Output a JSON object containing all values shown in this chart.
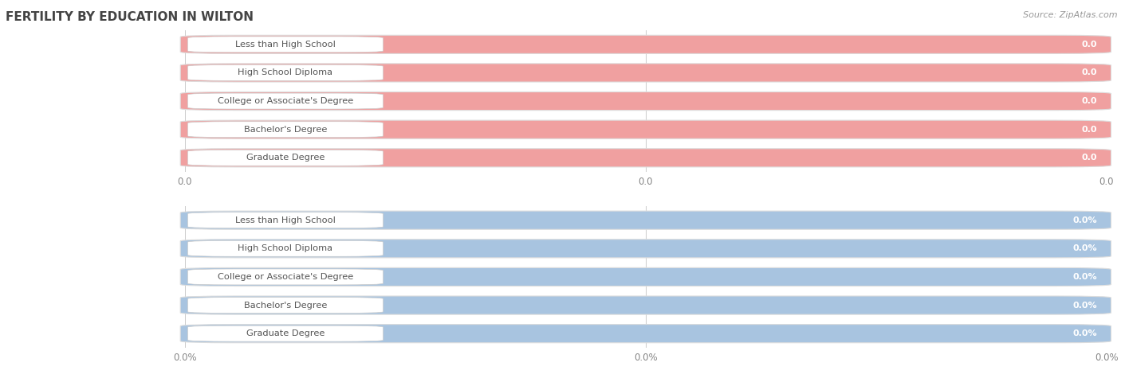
{
  "title": "FERTILITY BY EDUCATION IN WILTON",
  "source": "Source: ZipAtlas.com",
  "categories": [
    "Less than High School",
    "High School Diploma",
    "College or Associate's Degree",
    "Bachelor's Degree",
    "Graduate Degree"
  ],
  "top_values": [
    0.0,
    0.0,
    0.0,
    0.0,
    0.0
  ],
  "bottom_values": [
    0.0,
    0.0,
    0.0,
    0.0,
    0.0
  ],
  "top_bar_color": "#f0a0a0",
  "top_value_color": "#ffffff",
  "bottom_bar_color": "#a8c4e0",
  "bottom_value_color": "#ffffff",
  "white_label_color": "#ffffff",
  "label_text_color": "#555555",
  "grid_color": "#cccccc",
  "bg_color": "#ffffff",
  "row_sep_color": "#e0e0e0",
  "figsize": [
    14.06,
    4.75
  ],
  "dpi": 100,
  "title_color": "#444444",
  "source_color": "#999999",
  "tick_color": "#888888"
}
